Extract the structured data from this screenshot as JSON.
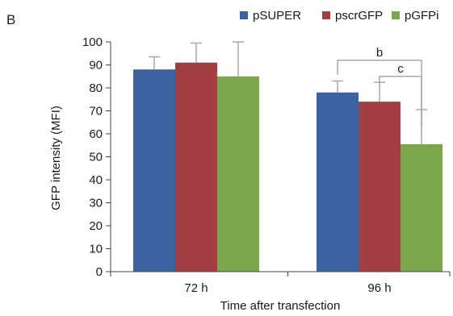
{
  "panel_label": "B",
  "colors": {
    "pSUPER": "#3c62a2",
    "pscrGFP": "#a23f43",
    "pGFPi": "#7ba64a",
    "axis": "#444444",
    "error_bar": "#a8a8a8"
  },
  "chart_data": {
    "type": "bar",
    "categories": [
      "72 h",
      "96 h"
    ],
    "series": [
      {
        "name": "pSUPER",
        "values": [
          88,
          78
        ],
        "error": [
          5.5,
          5
        ]
      },
      {
        "name": "pscrGFP",
        "values": [
          91,
          74
        ],
        "error": [
          8.5,
          8.5
        ]
      },
      {
        "name": "pGFPi",
        "values": [
          85,
          55.5
        ],
        "error": [
          15,
          15
        ]
      }
    ],
    "title": "",
    "xlabel": "Time after transfection",
    "ylabel": "GFP intensity (MFI)",
    "ylim": [
      0,
      100
    ],
    "yticks": [
      "0",
      "10",
      "20",
      "30",
      "40",
      "50",
      "60",
      "70",
      "80",
      "90",
      "100"
    ],
    "legend_position": "top-right",
    "grid": false,
    "annotations": [
      {
        "label": "b",
        "category": "96 h",
        "from_series": "pSUPER",
        "to_series": "pGFPi",
        "y": 92
      },
      {
        "label": "c",
        "category": "96 h",
        "from_series": "pscrGFP",
        "to_series": "pGFPi",
        "y": 85
      }
    ]
  }
}
